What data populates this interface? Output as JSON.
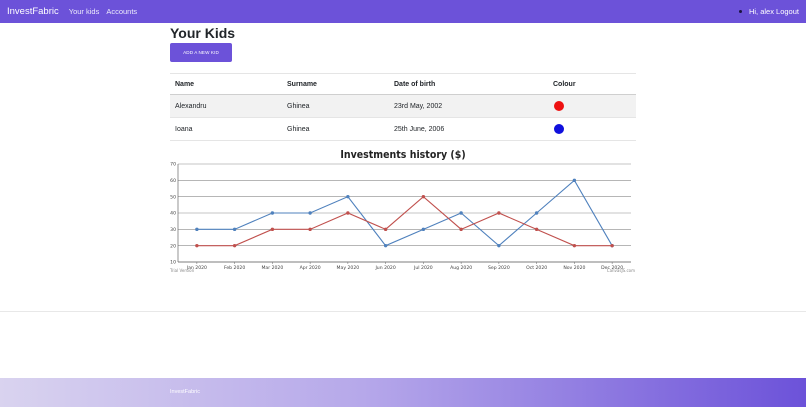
{
  "navbar": {
    "brand": "InvestFabric",
    "links": [
      "Your kids",
      "Accounts"
    ],
    "greeting": "Hi, alex",
    "logout": "Logout"
  },
  "page": {
    "title": "Your Kids",
    "add_button": "ADD A NEW KID"
  },
  "table": {
    "headers": [
      "Name",
      "Surname",
      "Date of birth",
      "Colour"
    ],
    "rows": [
      {
        "name": "Alexandru",
        "surname": "Ghinea",
        "dob": "23rd May, 2002",
        "colour": "#ee1111"
      },
      {
        "name": "Ioana",
        "surname": "Ghinea",
        "dob": "25th June, 2006",
        "colour": "#1010dd"
      }
    ]
  },
  "chart_data": {
    "type": "line",
    "title": "Investments history ($)",
    "categories": [
      "Jan 2020",
      "Feb 2020",
      "Mar 2020",
      "Apr 2020",
      "May 2020",
      "Jun 2020",
      "Jul 2020",
      "Aug 2020",
      "Sep 2020",
      "Oct 2020",
      "Nov 2020",
      "Dec 2020"
    ],
    "series": [
      {
        "color": "#4f81bd",
        "values": [
          30,
          30,
          40,
          40,
          50,
          20,
          30,
          40,
          20,
          40,
          60,
          20
        ]
      },
      {
        "color": "#c0504d",
        "values": [
          20,
          20,
          30,
          30,
          40,
          30,
          50,
          30,
          40,
          30,
          20,
          20
        ]
      }
    ],
    "ylim": [
      10,
      70
    ],
    "yticks": [
      10,
      20,
      30,
      40,
      50,
      60,
      70
    ],
    "grid": true,
    "credit_left": "Trial Version",
    "credit_right": "CanvasJS.com"
  },
  "footer": {
    "text": "InvestFabric"
  }
}
